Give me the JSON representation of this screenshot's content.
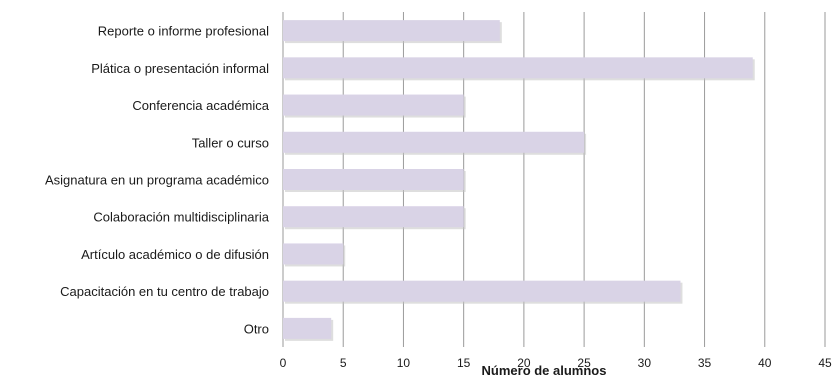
{
  "chart_data": {
    "type": "bar",
    "orientation": "horizontal",
    "categories": [
      "Reporte o informe profesional",
      "Plática o presentación informal",
      "Conferencia académica",
      "Taller o curso",
      "Asignatura en un programa académico",
      "Colaboración multidisciplinaria",
      "Artículo académico o de difusión",
      "Capacitación en tu centro de trabajo",
      "Otro"
    ],
    "values": [
      18,
      39,
      15,
      25,
      15,
      15,
      5,
      33,
      4
    ],
    "xlabel": "Número de alumnos",
    "ylabel": "",
    "xlim": [
      0,
      45
    ],
    "xticks": [
      "0",
      "5",
      "10",
      "15",
      "20",
      "25",
      "30",
      "35",
      "40",
      "45"
    ],
    "grid": "vertical",
    "legend": "none",
    "bar_color": "#d9d3e6",
    "bar_shadow_color": "#c3c3c3",
    "grid_color": "#9a9a9a"
  }
}
